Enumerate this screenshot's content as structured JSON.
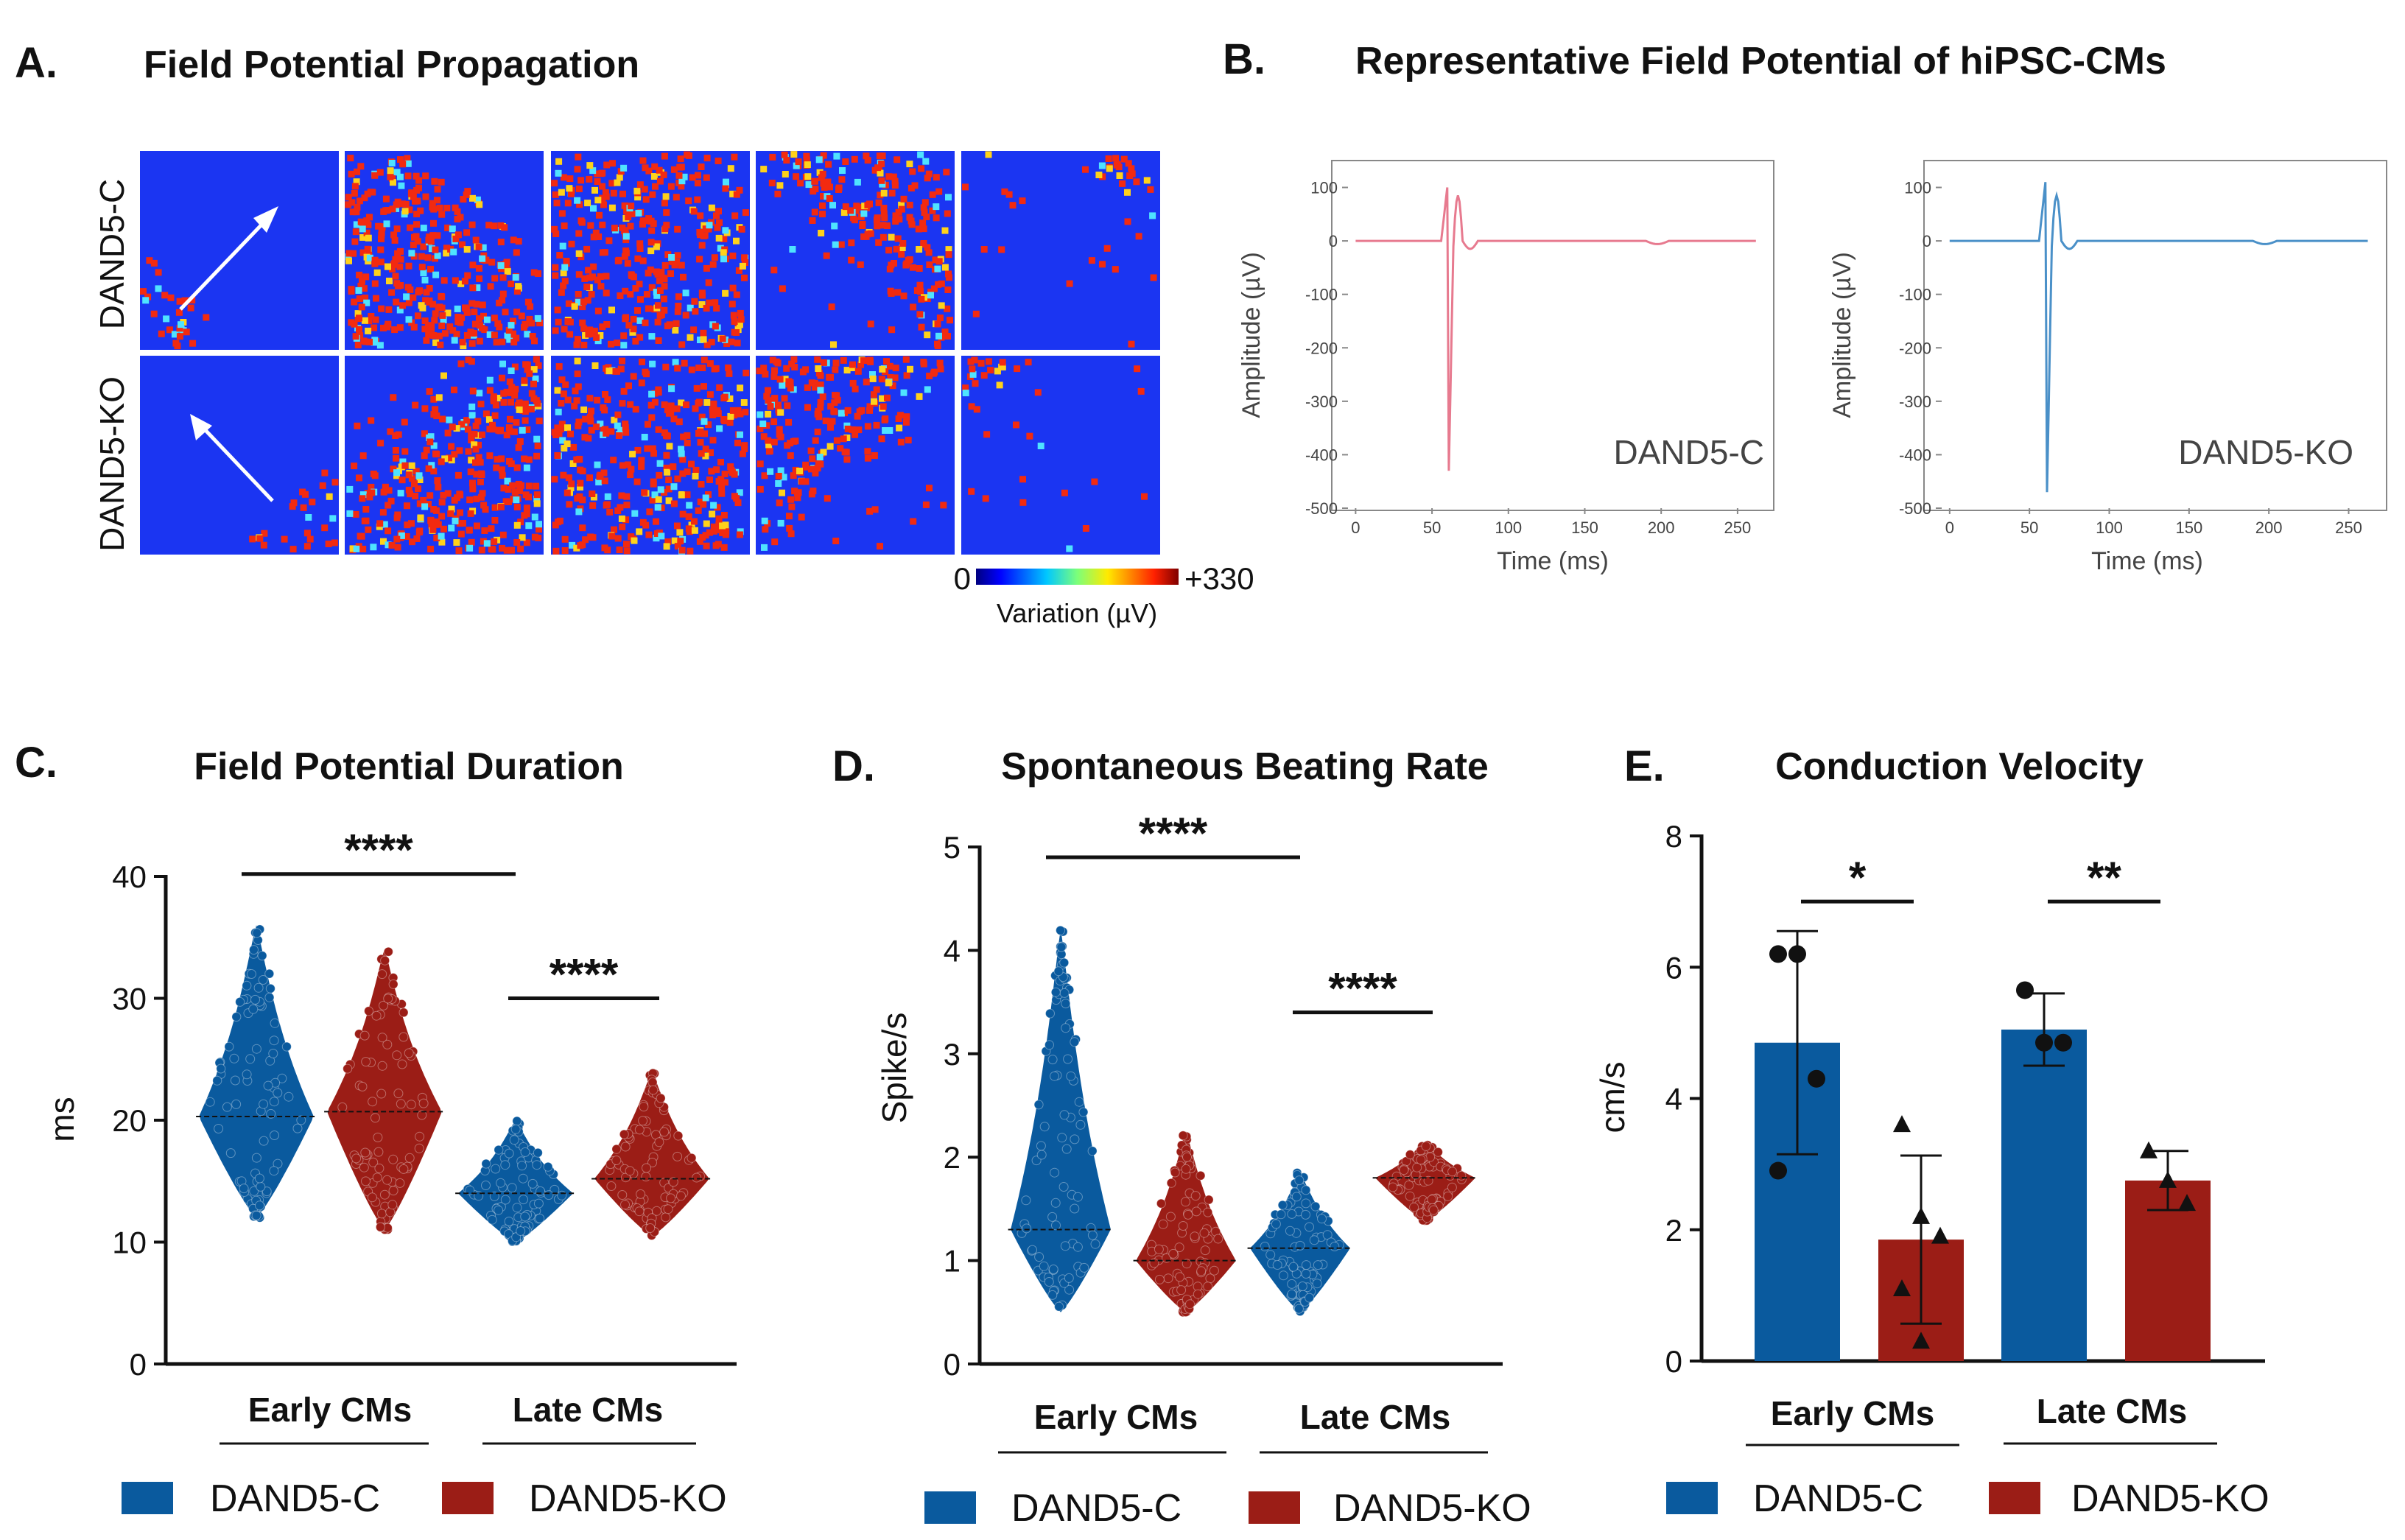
{
  "colors": {
    "control": "#0a5a9e",
    "ko": "#9b1d16",
    "trace_c": "#e77a8f",
    "trace_ko": "#4a90c8",
    "map_blue": "#1b35f2",
    "map_red": "#f22a10"
  },
  "panel_a": {
    "letter": "A.",
    "title": "Field Potential Propagation",
    "row_labels": [
      "DAND5-C",
      "DAND5-KO"
    ],
    "colorbar": {
      "min_label": "0",
      "max_label": "+330",
      "title": "Variation (µV)"
    },
    "tiles": {
      "DAND5-C": [
        0.05,
        0.45,
        0.68,
        0.4,
        0.1
      ],
      "DAND5-KO": [
        0.05,
        0.38,
        0.7,
        0.45,
        0.12
      ]
    }
  },
  "panel_b": {
    "letter": "B.",
    "title": "Representative Field Potential of hiPSC-CMs",
    "traces": [
      {
        "label": "DAND5-C",
        "ylabel": "Amplitude (µV)",
        "xlabel": "Time (ms)",
        "yticks": [
          "100",
          "0",
          "-100",
          "-200",
          "-300",
          "-400",
          "-500"
        ],
        "xticks": [
          "0",
          "50",
          "100",
          "150",
          "200",
          "250"
        ],
        "ylim": [
          -500,
          120
        ],
        "xlim": [
          -5,
          265
        ],
        "spike_min": -430,
        "spike_max": 100
      },
      {
        "label": "DAND5-KO",
        "ylabel": "Amplitude (µV)",
        "xlabel": "Time (ms)",
        "yticks": [
          "100",
          "0",
          "-100",
          "-200",
          "-300",
          "-400",
          "-500"
        ],
        "xticks": [
          "0",
          "50",
          "100",
          "150",
          "200",
          "250"
        ],
        "ylim": [
          -500,
          120
        ],
        "xlim": [
          -5,
          265
        ],
        "spike_min": -470,
        "spike_max": 110
      }
    ]
  },
  "chart_data": [
    {
      "panel": "C.",
      "type": "violin",
      "title": "Field Potential Duration",
      "ylabel": "ms",
      "ylim": [
        0,
        40
      ],
      "yticks": [
        "0",
        "10",
        "20",
        "30",
        "40"
      ],
      "groups": [
        "Early CMs",
        "Late CMs"
      ],
      "legend": [
        "DAND5-C",
        "DAND5-KO"
      ],
      "series": [
        {
          "name": "DAND5-C",
          "group": "Early CMs",
          "median": 20.3,
          "min": 12,
          "max": 36
        },
        {
          "name": "DAND5-KO",
          "group": "Early CMs",
          "median": 20.7,
          "min": 11,
          "max": 34
        },
        {
          "name": "DAND5-C",
          "group": "Late CMs",
          "median": 14.0,
          "min": 10,
          "max": 20
        },
        {
          "name": "DAND5-KO",
          "group": "Late CMs",
          "median": 15.2,
          "min": 10.5,
          "max": 24
        }
      ],
      "significance": [
        {
          "label": "****",
          "between": [
            "Early DAND5-C",
            "Late DAND5-C"
          ],
          "y": 40.2
        },
        {
          "label": "****",
          "between": [
            "Late DAND5-C",
            "Late DAND5-KO"
          ],
          "y": 30
        }
      ]
    },
    {
      "panel": "D.",
      "type": "violin",
      "title": "Spontaneous Beating Rate",
      "ylabel": "Spike/s",
      "ylim": [
        0,
        5
      ],
      "yticks": [
        "0",
        "1",
        "2",
        "3",
        "4",
        "5"
      ],
      "groups": [
        "Early CMs",
        "Late CMs"
      ],
      "legend": [
        "DAND5-C",
        "DAND5-KO"
      ],
      "series": [
        {
          "name": "DAND5-C",
          "group": "Early CMs",
          "median": 1.3,
          "min": 0.5,
          "max": 4.2
        },
        {
          "name": "DAND5-KO",
          "group": "Early CMs",
          "median": 1.0,
          "min": 0.5,
          "max": 2.25
        },
        {
          "name": "DAND5-C",
          "group": "Late CMs",
          "median": 1.12,
          "min": 0.5,
          "max": 1.85
        },
        {
          "name": "DAND5-KO",
          "group": "Late CMs",
          "median": 1.8,
          "min": 1.38,
          "max": 2.15
        }
      ],
      "significance": [
        {
          "label": "****",
          "between": [
            "Early DAND5-C",
            "Late DAND5-C"
          ],
          "y": 4.9
        },
        {
          "label": "****",
          "between": [
            "Late DAND5-C",
            "Late DAND5-KO"
          ],
          "y": 3.4
        }
      ]
    },
    {
      "panel": "E.",
      "type": "bar",
      "title": "Conduction Velocity",
      "ylabel": "cm/s",
      "ylim": [
        0,
        8
      ],
      "yticks": [
        "0",
        "2",
        "4",
        "6",
        "8"
      ],
      "groups": [
        "Early CMs",
        "Late CMs"
      ],
      "legend": [
        "DAND5-C",
        "DAND5-KO"
      ],
      "series": [
        {
          "name": "DAND5-C",
          "group": "Early CMs",
          "value": 4.85,
          "sd": 1.7,
          "points": [
            6.2,
            6.2,
            4.3,
            2.9
          ]
        },
        {
          "name": "DAND5-KO",
          "group": "Early CMs",
          "value": 1.85,
          "sd": 1.28,
          "points": [
            3.6,
            2.2,
            1.9,
            1.1,
            0.3
          ]
        },
        {
          "name": "DAND5-C",
          "group": "Late CMs",
          "value": 5.05,
          "sd": 0.55,
          "points": [
            5.65,
            4.85,
            4.85
          ]
        },
        {
          "name": "DAND5-KO",
          "group": "Late CMs",
          "value": 2.75,
          "sd": 0.45,
          "points": [
            3.2,
            2.75,
            2.4
          ]
        }
      ],
      "significance": [
        {
          "label": "*",
          "between": [
            "Early DAND5-C",
            "Early DAND5-KO"
          ],
          "y": 7.0
        },
        {
          "label": "**",
          "between": [
            "Late DAND5-C",
            "Late DAND5-KO"
          ],
          "y": 7.0
        }
      ]
    }
  ]
}
